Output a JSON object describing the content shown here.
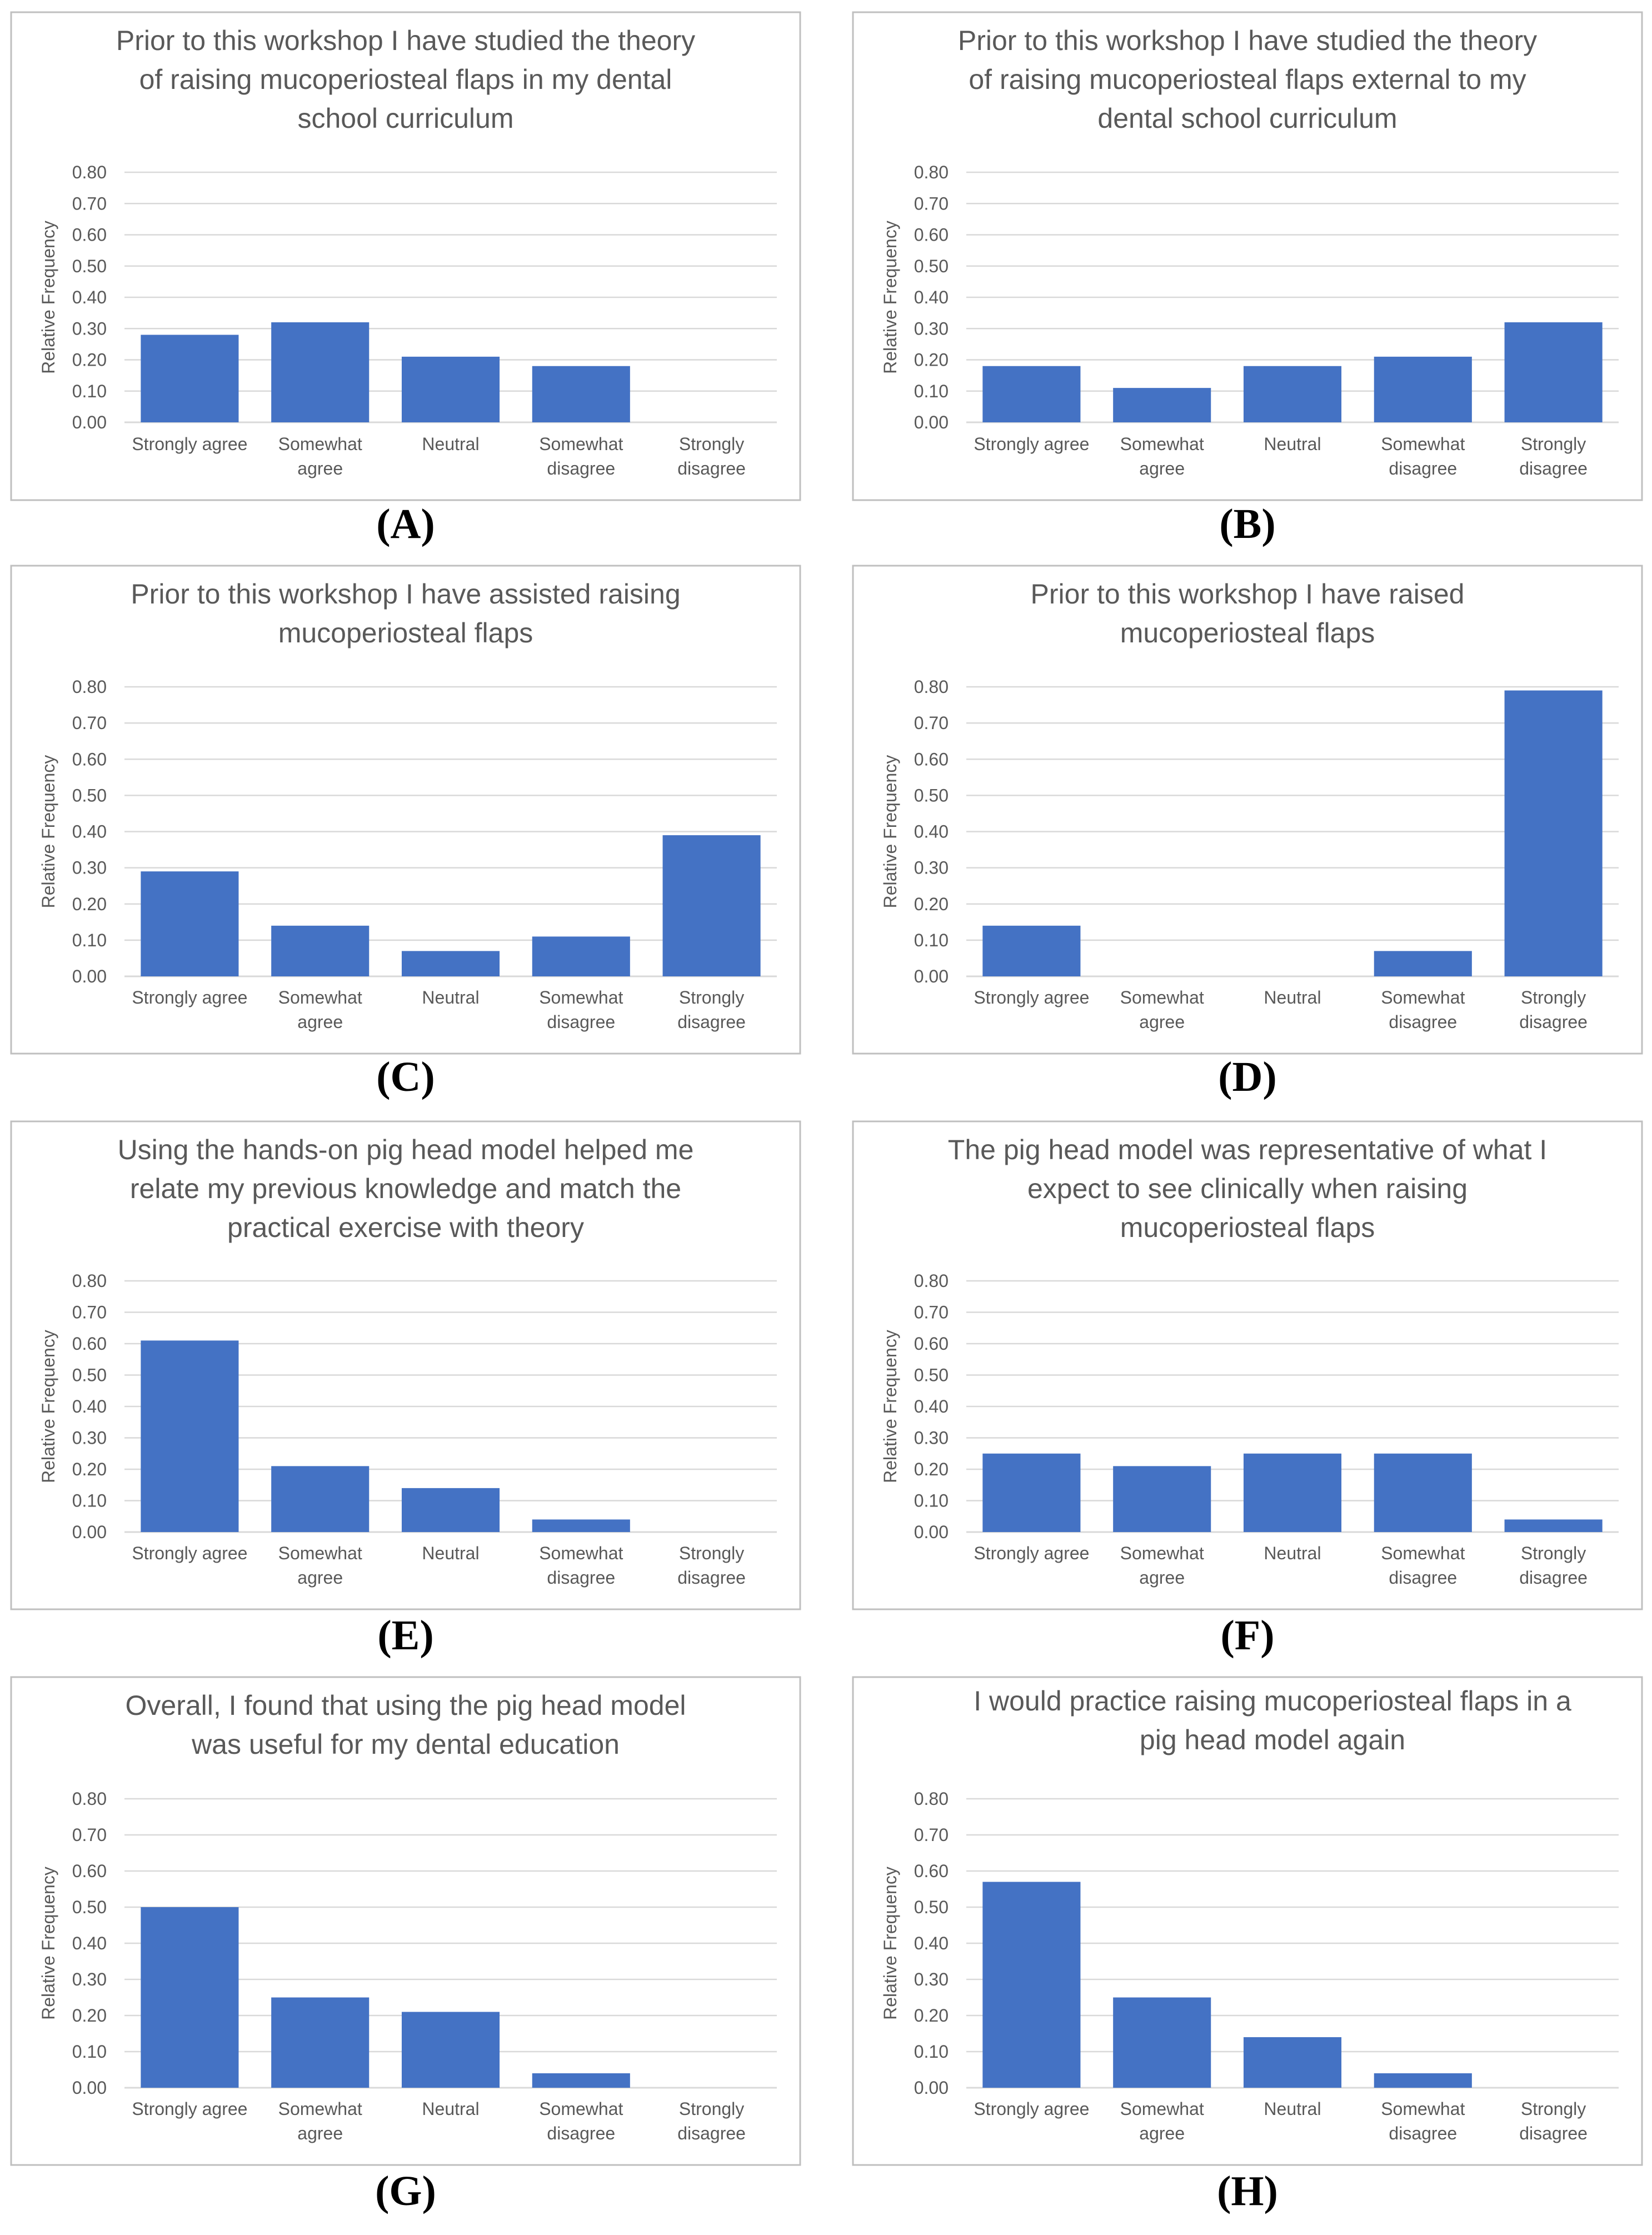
{
  "colors": {
    "bar": "#4472C4",
    "grid": "#d9d9d9",
    "text": "#595959",
    "frame": "#bfbfbf"
  },
  "chart_data": [
    {
      "label": "A",
      "type": "bar",
      "title": [
        "Prior to this workshop I have studied the theory",
        "of raising mucoperiosteal flaps in my dental",
        "school curriculum"
      ],
      "ylabel": "Relative Frequency",
      "ylim": [
        0,
        0.8
      ],
      "yticks": [
        "0.00",
        "0.10",
        "0.20",
        "0.30",
        "0.40",
        "0.50",
        "0.60",
        "0.70",
        "0.80"
      ],
      "categories": [
        [
          "Strongly agree"
        ],
        [
          "Somewhat",
          "agree"
        ],
        [
          "Neutral"
        ],
        [
          "Somewhat",
          "disagree"
        ],
        [
          "Strongly",
          "disagree"
        ]
      ],
      "values": [
        0.28,
        0.32,
        0.21,
        0.18,
        0.0
      ]
    },
    {
      "label": "B",
      "type": "bar",
      "title": [
        "Prior to this workshop I have studied the theory",
        "of raising mucoperiosteal flaps external to my",
        "dental school curriculum"
      ],
      "ylabel": "Relative Frequency",
      "ylim": [
        0,
        0.8
      ],
      "yticks": [
        "0.00",
        "0.10",
        "0.20",
        "0.30",
        "0.40",
        "0.50",
        "0.60",
        "0.70",
        "0.80"
      ],
      "categories": [
        [
          "Strongly agree"
        ],
        [
          "Somewhat",
          "agree"
        ],
        [
          "Neutral"
        ],
        [
          "Somewhat",
          "disagree"
        ],
        [
          "Strongly",
          "disagree"
        ]
      ],
      "values": [
        0.18,
        0.11,
        0.18,
        0.21,
        0.32
      ]
    },
    {
      "label": "C",
      "type": "bar",
      "title": [
        "Prior to this workshop I have assisted raising",
        "mucoperiosteal flaps"
      ],
      "ylabel": "Relative Frequency",
      "ylim": [
        0,
        0.8
      ],
      "yticks": [
        "0.00",
        "0.10",
        "0.20",
        "0.30",
        "0.40",
        "0.50",
        "0.60",
        "0.70",
        "0.80"
      ],
      "categories": [
        [
          "Strongly agree"
        ],
        [
          "Somewhat",
          "agree"
        ],
        [
          "Neutral"
        ],
        [
          "Somewhat",
          "disagree"
        ],
        [
          "Strongly",
          "disagree"
        ]
      ],
      "values": [
        0.29,
        0.14,
        0.07,
        0.11,
        0.39
      ]
    },
    {
      "label": "D",
      "type": "bar",
      "title": [
        "Prior to this workshop I have raised",
        "mucoperiosteal flaps"
      ],
      "ylabel": "Relative Frequency",
      "ylim": [
        0,
        0.8
      ],
      "yticks": [
        "0.00",
        "0.10",
        "0.20",
        "0.30",
        "0.40",
        "0.50",
        "0.60",
        "0.70",
        "0.80"
      ],
      "categories": [
        [
          "Strongly agree"
        ],
        [
          "Somewhat",
          "agree"
        ],
        [
          "Neutral"
        ],
        [
          "Somewhat",
          "disagree"
        ],
        [
          "Strongly",
          "disagree"
        ]
      ],
      "values": [
        0.14,
        0.0,
        0.0,
        0.07,
        0.79
      ]
    },
    {
      "label": "E",
      "type": "bar",
      "title": [
        "Using the hands-on pig head model helped me",
        "relate my previous knowledge and match the",
        "practical exercise with theory"
      ],
      "ylabel": "Relative Frequency",
      "ylim": [
        0,
        0.8
      ],
      "yticks": [
        "0.00",
        "0.10",
        "0.20",
        "0.30",
        "0.40",
        "0.50",
        "0.60",
        "0.70",
        "0.80"
      ],
      "categories": [
        [
          "Strongly agree"
        ],
        [
          "Somewhat",
          "agree"
        ],
        [
          "Neutral"
        ],
        [
          "Somewhat",
          "disagree"
        ],
        [
          "Strongly",
          "disagree"
        ]
      ],
      "values": [
        0.61,
        0.21,
        0.14,
        0.04,
        0.0
      ]
    },
    {
      "label": "F",
      "type": "bar",
      "title": [
        "The pig head model was representative of what I",
        "expect to see clinically when raising",
        "mucoperiosteal flaps"
      ],
      "ylabel": "Relative Frequency",
      "ylim": [
        0,
        0.8
      ],
      "yticks": [
        "0.00",
        "0.10",
        "0.20",
        "0.30",
        "0.40",
        "0.50",
        "0.60",
        "0.70",
        "0.80"
      ],
      "categories": [
        [
          "Strongly agree"
        ],
        [
          "Somewhat",
          "agree"
        ],
        [
          "Neutral"
        ],
        [
          "Somewhat",
          "disagree"
        ],
        [
          "Strongly",
          "disagree"
        ]
      ],
      "values": [
        0.25,
        0.21,
        0.25,
        0.25,
        0.04
      ]
    },
    {
      "label": "G",
      "type": "bar",
      "title": [
        "Overall, I found that using the pig head model",
        "was useful for my dental education"
      ],
      "ylabel": "Relative Frequency",
      "ylim": [
        0,
        0.8
      ],
      "yticks": [
        "0.00",
        "0.10",
        "0.20",
        "0.30",
        "0.40",
        "0.50",
        "0.60",
        "0.70",
        "0.80"
      ],
      "categories": [
        [
          "Strongly agree"
        ],
        [
          "Somewhat",
          "agree"
        ],
        [
          "Neutral"
        ],
        [
          "Somewhat",
          "disagree"
        ],
        [
          "Strongly",
          "disagree"
        ]
      ],
      "values": [
        0.5,
        0.25,
        0.21,
        0.04,
        0.0
      ]
    },
    {
      "label": "H",
      "type": "bar",
      "title": [
        "I would practice raising mucoperiosteal flaps in a",
        "pig head model again"
      ],
      "ylabel": "Relative Frequency",
      "ylim": [
        0,
        0.8
      ],
      "yticks": [
        "0.00",
        "0.10",
        "0.20",
        "0.30",
        "0.40",
        "0.50",
        "0.60",
        "0.70",
        "0.80"
      ],
      "categories": [
        [
          "Strongly agree"
        ],
        [
          "Somewhat",
          "agree"
        ],
        [
          "Neutral"
        ],
        [
          "Somewhat",
          "disagree"
        ],
        [
          "Strongly",
          "disagree"
        ]
      ],
      "values": [
        0.57,
        0.25,
        0.14,
        0.04,
        0.0
      ]
    }
  ]
}
